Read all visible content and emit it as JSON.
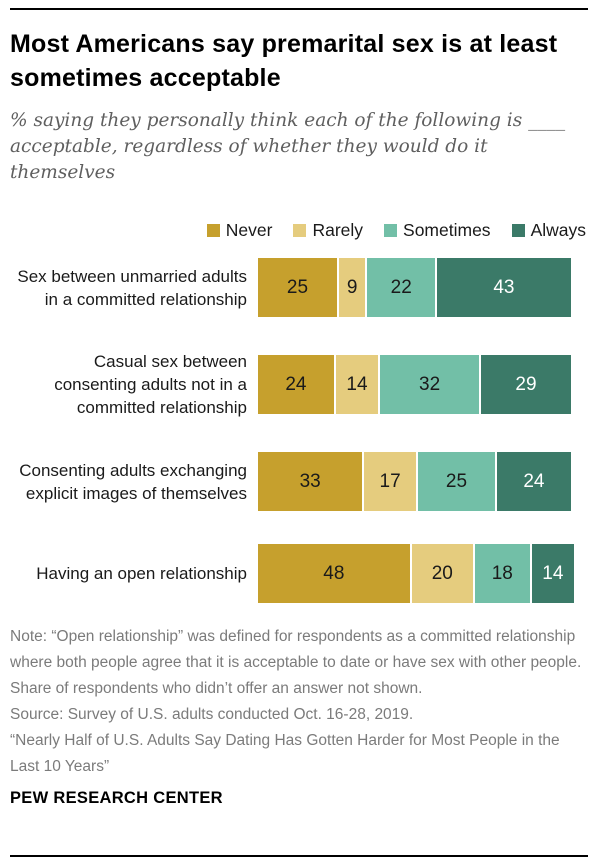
{
  "header": {
    "title": "Most Americans say premarital sex is at least sometimes acceptable",
    "subtitle": "% saying they personally think each of the following is ____ acceptable, regardless of whether they would do it themselves"
  },
  "chart_data": {
    "type": "bar",
    "stacked": true,
    "orientation": "horizontal",
    "xlim": [
      0,
      100
    ],
    "value_labels": true,
    "legend_position": "top-right",
    "categories": [
      "Sex between unmarried adults in a committed relationship",
      "Casual sex between consenting adults not in a committed relationship",
      "Consenting adults exchanging explicit images of themselves",
      "Having an open relationship"
    ],
    "series": [
      {
        "name": "Never",
        "color": "#C6A02D",
        "text_color": "#1a1a1a",
        "values": [
          25,
          24,
          33,
          48
        ]
      },
      {
        "name": "Rarely",
        "color": "#E5CC7E",
        "text_color": "#1a1a1a",
        "values": [
          9,
          14,
          17,
          20
        ]
      },
      {
        "name": "Sometimes",
        "color": "#72BFA7",
        "text_color": "#1a1a1a",
        "values": [
          22,
          32,
          25,
          18
        ]
      },
      {
        "name": "Always",
        "color": "#3B7A68",
        "text_color": "#ffffff",
        "values": [
          43,
          29,
          24,
          14
        ]
      }
    ]
  },
  "notes": {
    "note": "Note: “Open relationship” was defined for respondents as a committed relationship where both people agree that it is acceptable to date or have sex with other people. Share of respondents who didn’t offer an answer not shown.",
    "source": "Source: Survey of U.S. adults conducted Oct. 16-28, 2019.",
    "report": "“Nearly Half of U.S. Adults Say Dating Has Gotten Harder for Most People in the Last 10 Years”"
  },
  "footer": {
    "brand": "PEW RESEARCH CENTER"
  }
}
